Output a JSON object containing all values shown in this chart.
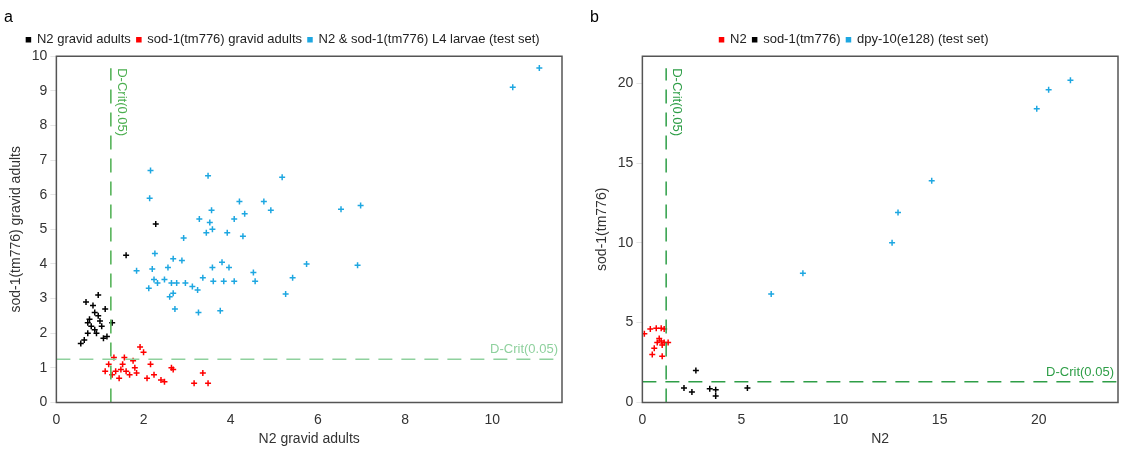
{
  "chart_data": [
    {
      "type": "scatter",
      "title": "a",
      "xlabel": "N2 gravid adults",
      "ylabel": "sod-1(tm776) gravid adults",
      "xlim": [
        0,
        11.6
      ],
      "ylim": [
        0,
        10
      ],
      "xticks": [
        0,
        2,
        4,
        6,
        8,
        10
      ],
      "yticks": [
        0,
        1,
        2,
        3,
        4,
        5,
        6,
        7,
        8,
        9,
        10
      ],
      "legend": "top",
      "marker": "cross",
      "grid": false,
      "ref_lines": [
        {
          "axis": "x",
          "value": 1.25,
          "label": "D-Crit(0.05)",
          "color": "#4caf50",
          "line_style": "dashed"
        },
        {
          "axis": "y",
          "value": 1.25,
          "label": "D-Crit(0.05)",
          "color": "#8fd19e",
          "line_style": "dashed"
        }
      ],
      "series": [
        {
          "name": "N2 gravid adults",
          "color": "#000000",
          "x": [
            0.56,
            0.64,
            0.68,
            0.72,
            0.76,
            0.8,
            0.84,
            0.88,
            0.92,
            0.96,
            0.96,
            1.0,
            1.04,
            1.08,
            1.12,
            1.16,
            1.28,
            1.6,
            2.28,
            0.72,
            0.88
          ],
          "values": [
            1.7,
            1.8,
            2.9,
            2.3,
            2.4,
            2.2,
            2.8,
            2.6,
            2.0,
            2.5,
            3.1,
            2.35,
            2.2,
            1.85,
            2.7,
            1.9,
            2.3,
            4.25,
            5.15,
            2.0,
            2.1
          ]
        },
        {
          "name": "sod-1(tm776) gravid adults",
          "color": "#ff0000",
          "x": [
            1.12,
            1.2,
            1.32,
            1.36,
            1.44,
            1.52,
            1.56,
            1.6,
            1.68,
            1.76,
            1.8,
            1.84,
            1.92,
            2.0,
            2.08,
            2.16,
            2.24,
            2.4,
            2.48,
            2.64,
            2.68,
            3.16,
            3.36,
            3.48,
            1.28,
            1.48
          ],
          "values": [
            0.9,
            1.1,
            1.3,
            0.9,
            0.7,
            1.1,
            1.3,
            0.9,
            0.8,
            1.2,
            1.0,
            0.85,
            1.6,
            1.45,
            0.7,
            1.1,
            0.8,
            0.65,
            0.6,
            1.0,
            0.95,
            0.55,
            0.85,
            0.55,
            0.8,
            0.95
          ]
        },
        {
          "name": "N2 & sod-1(tm776) L4 larvae (test set)",
          "color": "#1ea7e1",
          "x": [
            2.16,
            2.14,
            2.26,
            1.84,
            2.12,
            2.2,
            2.24,
            2.32,
            2.48,
            2.56,
            2.68,
            2.64,
            2.6,
            2.68,
            2.72,
            2.76,
            2.88,
            2.92,
            2.96,
            3.12,
            3.24,
            3.26,
            3.28,
            3.36,
            3.44,
            3.52,
            3.56,
            3.58,
            3.58,
            3.48,
            3.6,
            3.76,
            3.8,
            3.84,
            3.92,
            3.96,
            4.08,
            4.08,
            4.2,
            4.28,
            4.32,
            4.52,
            4.56,
            4.76,
            4.92,
            5.18,
            5.26,
            5.42,
            5.74,
            6.53,
            6.91,
            6.98,
            10.47,
            11.08
          ],
          "values": [
            6.7,
            5.9,
            4.3,
            3.8,
            3.3,
            3.85,
            3.55,
            3.45,
            3.55,
            3.9,
            4.15,
            3.45,
            3.05,
            3.15,
            2.7,
            3.45,
            4.1,
            4.75,
            3.45,
            3.35,
            3.25,
            2.6,
            5.3,
            3.6,
            4.9,
            5.2,
            5.55,
            5.0,
            3.9,
            6.55,
            3.5,
            2.65,
            4.05,
            3.5,
            4.9,
            3.9,
            3.5,
            5.3,
            5.8,
            4.8,
            5.45,
            3.75,
            3.5,
            5.8,
            5.55,
            6.5,
            3.13,
            3.6,
            4.0,
            5.58,
            3.96,
            5.69,
            9.1,
            9.66
          ]
        }
      ]
    },
    {
      "type": "scatter",
      "title": "b",
      "xlabel": "N2",
      "ylabel": "sod-1(tm776)",
      "xlim": [
        0,
        24
      ],
      "ylim": [
        0,
        21.7
      ],
      "xticks": [
        0,
        5,
        10,
        15,
        20
      ],
      "yticks": [
        0,
        5,
        10,
        15,
        20
      ],
      "legend": "top",
      "marker": "cross",
      "grid": false,
      "ref_lines": [
        {
          "axis": "x",
          "value": 1.2,
          "label": "D-Crit(0.05)",
          "color": "#2e9e47",
          "line_style": "dashed"
        },
        {
          "axis": "y",
          "value": 1.3,
          "label": "D-Crit(0.05)",
          "color": "#2e9e47",
          "line_style": "dashed"
        }
      ],
      "series": [
        {
          "name": "N2",
          "color": "#ff0000",
          "x": [
            0.1,
            0.4,
            0.7,
            0.95,
            1.1,
            0.75,
            0.95,
            1.0,
            0.85,
            1.1,
            1.3,
            0.5,
            1.0,
            0.6
          ],
          "values": [
            4.3,
            4.6,
            4.65,
            4.65,
            4.6,
            3.75,
            3.85,
            3.6,
            4.0,
            3.75,
            3.75,
            3.0,
            2.9,
            3.4
          ]
        },
        {
          "name": "sod-1(tm776)",
          "color": "#000000",
          "x": [
            2.7,
            2.1,
            2.5,
            3.4,
            3.7,
            3.7,
            5.3
          ],
          "values": [
            2.0,
            0.9,
            0.65,
            0.85,
            0.8,
            0.4,
            0.9
          ]
        },
        {
          "name": "dpy-10(e128) (test set)",
          "color": "#1ea7e1",
          "x": [
            6.5,
            8.1,
            12.6,
            12.9,
            14.6,
            19.9,
            20.5,
            21.6
          ],
          "values": [
            6.8,
            8.1,
            10.0,
            11.9,
            13.9,
            18.4,
            19.6,
            20.2
          ]
        }
      ]
    }
  ]
}
